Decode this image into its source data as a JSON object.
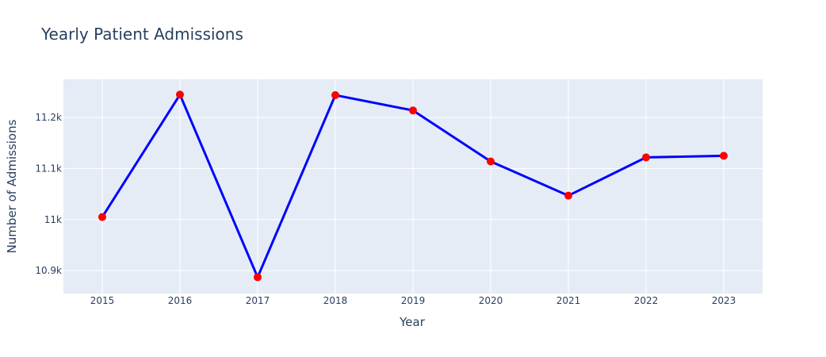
{
  "chart_data": {
    "type": "line",
    "title": "Yearly Patient Admissions",
    "xlabel": "Year",
    "ylabel": "Number of Admissions",
    "x": [
      2015,
      2016,
      2017,
      2018,
      2019,
      2020,
      2021,
      2022,
      2023
    ],
    "x_tick_labels": [
      "2015",
      "2016",
      "2017",
      "2018",
      "2019",
      "2020",
      "2021",
      "2022",
      "2023"
    ],
    "y": [
      11005,
      11245,
      10887,
      11244,
      11214,
      11114,
      11047,
      11122,
      11125
    ],
    "y_ticks": [
      10900,
      11000,
      11100,
      11200
    ],
    "y_tick_labels": [
      "10.9k",
      "11k",
      "11.1k",
      "11.2k"
    ],
    "xlim": [
      2014.5,
      2023.5
    ],
    "ylim": [
      10855,
      11275
    ],
    "grid": true,
    "legend": "none",
    "colors": {
      "line": "#0000ff",
      "marker": "#ff0000",
      "plot_bg": "#e5ecf6",
      "grid": "#ffffff",
      "text": "#2a3f5f"
    }
  }
}
